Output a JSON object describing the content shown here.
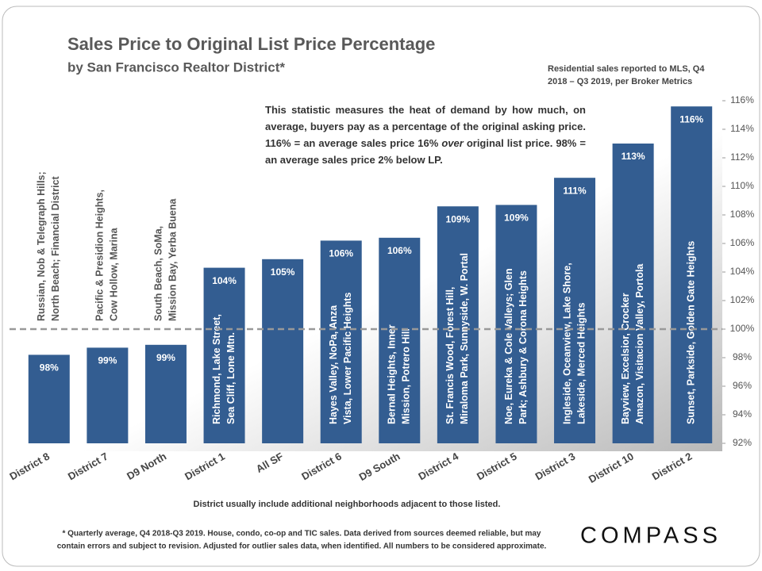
{
  "chart_data": {
    "type": "bar",
    "title": "Sales Price to Original List Price Percentage",
    "subtitle": "by San Francisco Realtor District*",
    "source_note": [
      "Residential sales reported to MLS, Q4",
      "2018 – Q3 2019, per Broker Metrics"
    ],
    "annotation": [
      "This statistic measures the heat of demand by how much, on average, buyers pay as a percentage of the original asking price. 116% = an average sales price 16% ",
      "over",
      " original list price. 98% = an average sales price 2% below LP."
    ],
    "categories": [
      "District 8",
      "District 7",
      "D9 North",
      "District 1",
      "All SF",
      "District 6",
      "D9 South",
      "District 4",
      "District 5",
      "District 3",
      "District 10",
      "District 2"
    ],
    "values": [
      98.2,
      98.7,
      98.9,
      104.3,
      104.9,
      106.2,
      106.4,
      108.6,
      108.7,
      110.6,
      113.0,
      115.6
    ],
    "value_labels": [
      "98%",
      "99%",
      "99%",
      "104%",
      "105%",
      "106%",
      "106%",
      "109%",
      "109%",
      "111%",
      "113%",
      "116%"
    ],
    "bar_labels": [
      [
        "Russian, Nob & Telegraph Hills;",
        "North Beach; Financial District"
      ],
      [
        "Pacific  & Presidion Heights,",
        "Cow Hollow, Marina"
      ],
      [
        "South Beach, SoMa,",
        "Mission Bay, Yerba Buena"
      ],
      [
        "Richmond, Lake Street,",
        "Sea Cliff, Lone Mtn."
      ],
      null,
      [
        "Hayes Valley, NoPa, Anza",
        "Vista, Lower Pacific Heights"
      ],
      [
        "Bernal Heights, Inner",
        "Mission, Potrero Hill"
      ],
      [
        "St. Francis Wood, Forest Hill,",
        "Miraloma Park, Sunnyside, W. Portal"
      ],
      [
        "Noe, Eureka & Cole Valleys; Glen",
        "Park; Ashbury & Corona Heights"
      ],
      [
        "Ingleside, Oceanview, Lake Shore,",
        "Lakeside, Merced Heights"
      ],
      [
        "Bayview, Excelsior, Crocker",
        "Amazon, Visitacion Valley, Portola"
      ],
      [
        "Sunset, Parkside, Golden Gate Heights"
      ]
    ],
    "color": "#335d91",
    "ylim": [
      92,
      116
    ],
    "yticks": [
      {
        "value": 92,
        "label": "92%"
      },
      {
        "value": 94,
        "label": "94%"
      },
      {
        "value": 96,
        "label": "96%"
      },
      {
        "value": 98,
        "label": "98%"
      },
      {
        "value": 100,
        "label": "100%"
      },
      {
        "value": 102,
        "label": "102%"
      },
      {
        "value": 104,
        "label": "104%"
      },
      {
        "value": 106,
        "label": "106%"
      },
      {
        "value": 108,
        "label": "108%"
      },
      {
        "value": 110,
        "label": "110%"
      },
      {
        "value": 112,
        "label": "112%"
      },
      {
        "value": 114,
        "label": "114%"
      },
      {
        "value": 116,
        "label": "116%"
      }
    ],
    "reference_line": 100,
    "axis_note": "District usually include additional neighborhoods adjacent to those listed.",
    "footnote": [
      "* Quarterly average, Q4 2018-Q3 2019. House, condo, co-op and TIC sales. Data derived from sources deemed reliable, but may",
      "contain errors and subject to revision. Adjusted for outlier sales data, when identified. All numbers to be considered approximate."
    ],
    "brand": "COMPASS"
  }
}
